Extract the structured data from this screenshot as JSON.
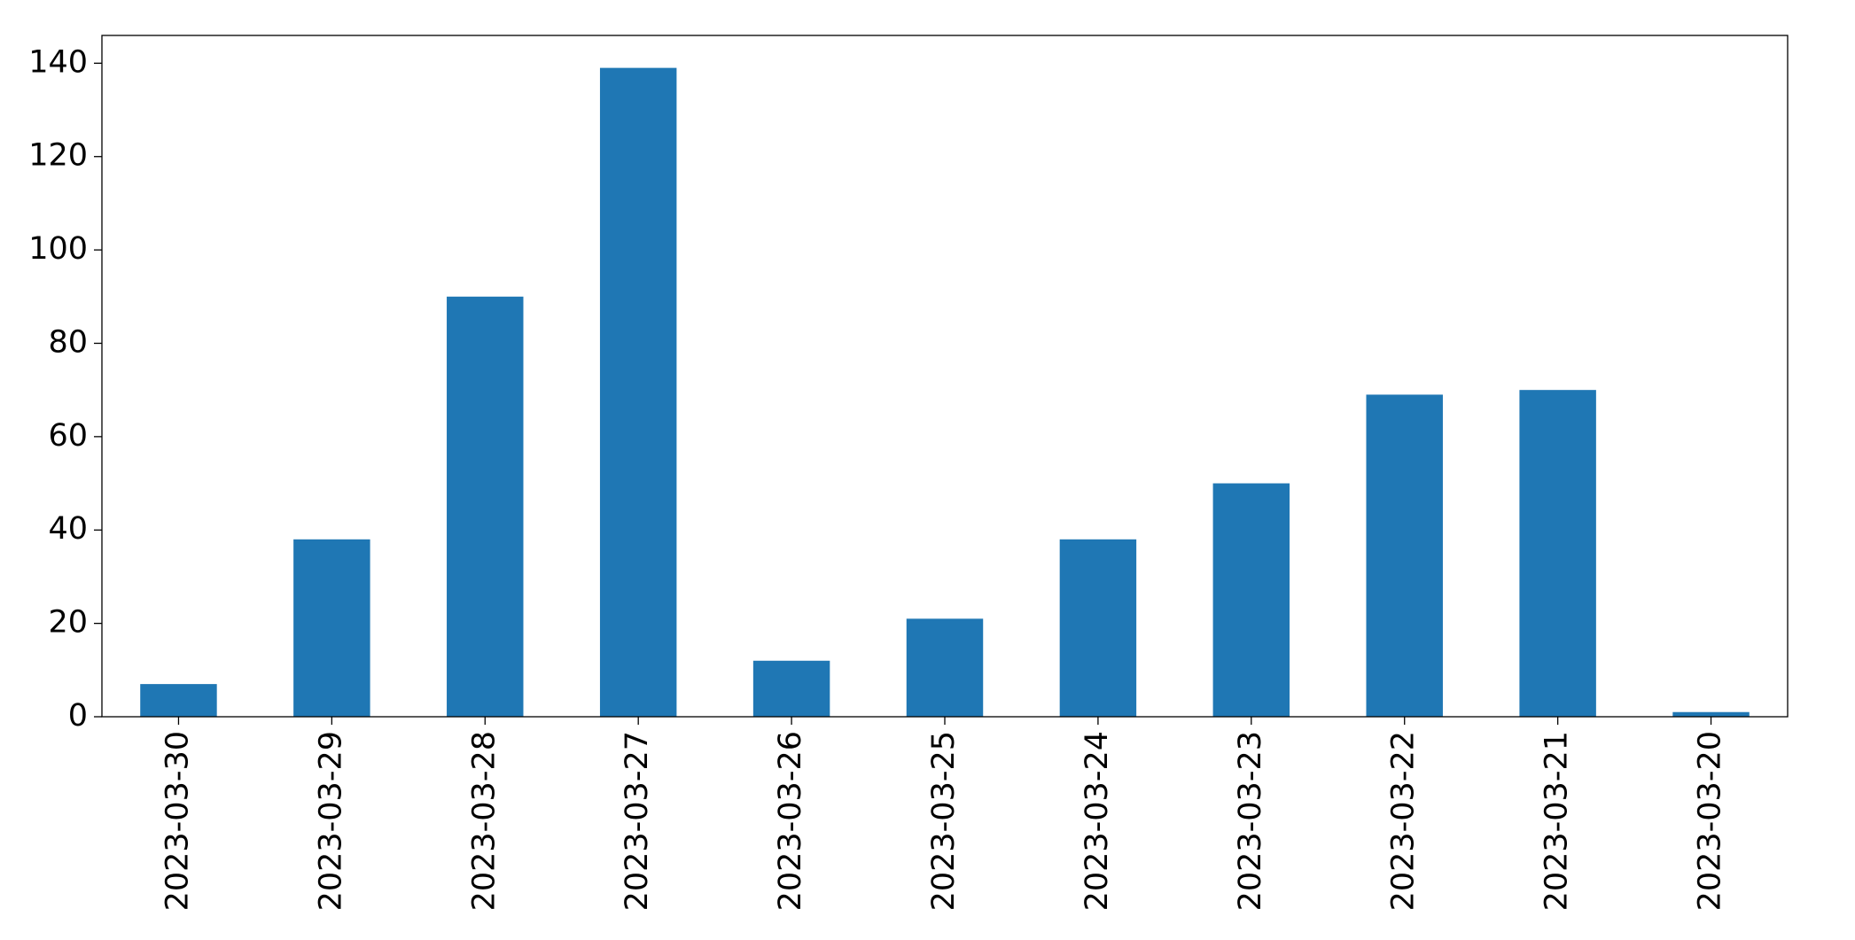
{
  "chart_data": {
    "type": "bar",
    "categories": [
      "2023-03-30",
      "2023-03-29",
      "2023-03-28",
      "2023-03-27",
      "2023-03-26",
      "2023-03-25",
      "2023-03-24",
      "2023-03-23",
      "2023-03-22",
      "2023-03-21",
      "2023-03-20"
    ],
    "values": [
      7,
      38,
      90,
      139,
      12,
      21,
      38,
      50,
      69,
      70,
      1
    ],
    "color": "#1f77b4",
    "ylim": [
      0,
      145.95
    ],
    "yticks": [
      0,
      20,
      40,
      60,
      80,
      100,
      120,
      140
    ]
  }
}
